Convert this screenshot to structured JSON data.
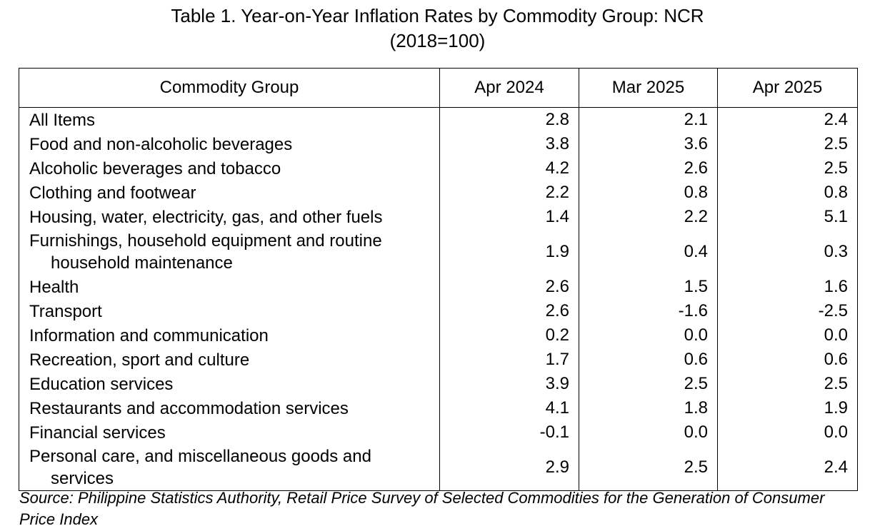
{
  "title": "Table 1. Year-on-Year Inflation Rates by Commodity Group: NCR",
  "subtitle": "(2018=100)",
  "columns": [
    "Commodity Group",
    "Apr 2024",
    "Mar 2025",
    "Apr 2025"
  ],
  "rows": [
    {
      "name": "All Items",
      "apr2024": "2.8",
      "mar2025": "2.1",
      "apr2025": "2.4"
    },
    {
      "name": "Food and non-alcoholic beverages",
      "apr2024": "3.8",
      "mar2025": "3.6",
      "apr2025": "2.5"
    },
    {
      "name": "Alcoholic beverages and tobacco",
      "apr2024": "4.2",
      "mar2025": "2.6",
      "apr2025": "2.5"
    },
    {
      "name": "Clothing and footwear",
      "apr2024": "2.2",
      "mar2025": "0.8",
      "apr2025": "0.8"
    },
    {
      "name": "Housing, water, electricity, gas, and other fuels",
      "apr2024": "1.4",
      "mar2025": "2.2",
      "apr2025": "5.1"
    },
    {
      "name": "Furnishings, household equipment and routine",
      "name_cont": "household maintenance",
      "apr2024": "1.9",
      "mar2025": "0.4",
      "apr2025": "0.3"
    },
    {
      "name": "Health",
      "apr2024": "2.6",
      "mar2025": "1.5",
      "apr2025": "1.6"
    },
    {
      "name": "Transport",
      "apr2024": "2.6",
      "mar2025": "-1.6",
      "apr2025": "-2.5"
    },
    {
      "name": "Information and communication",
      "apr2024": "0.2",
      "mar2025": "0.0",
      "apr2025": "0.0"
    },
    {
      "name": "Recreation, sport and culture",
      "apr2024": "1.7",
      "mar2025": "0.6",
      "apr2025": "0.6"
    },
    {
      "name": "Education services",
      "apr2024": "3.9",
      "mar2025": "2.5",
      "apr2025": "2.5"
    },
    {
      "name": "Restaurants and accommodation services",
      "apr2024": "4.1",
      "mar2025": "1.8",
      "apr2025": "1.9"
    },
    {
      "name": "Financial services",
      "apr2024": "-0.1",
      "mar2025": "0.0",
      "apr2025": "0.0"
    },
    {
      "name": "Personal care, and miscellaneous goods and",
      "name_cont": "services",
      "apr2024": "2.9",
      "mar2025": "2.5",
      "apr2025": "2.4"
    }
  ],
  "source": "Source: Philippine Statistics Authority, Retail Price Survey of Selected Commodities for the Generation of Consumer Price Index"
}
